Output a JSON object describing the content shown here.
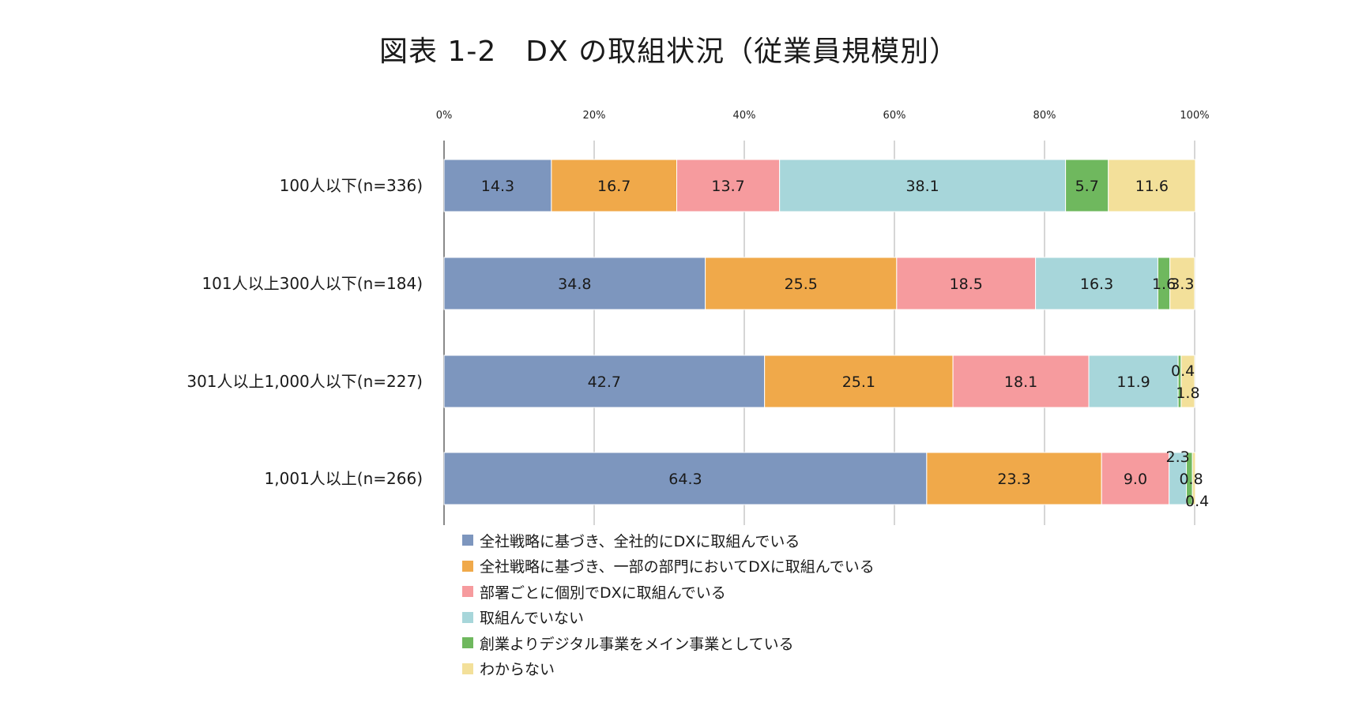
{
  "chart_data": {
    "type": "bar",
    "orientation": "horizontal",
    "stacked": true,
    "title": "図表 1-2　DX の取組状況（従業員規模別）",
    "categories": [
      "100人以下(n=336)",
      "101人以上300人以下(n=184)",
      "301人以上1,000人以下(n=227)",
      "1,001人以上(n=266)"
    ],
    "series": [
      {
        "name": "全社戦略に基づき、全社的にDXに取組んでいる",
        "color": "#7d96be",
        "values": [
          14.3,
          34.8,
          42.7,
          64.3
        ],
        "labels": [
          "14.3",
          "34.8",
          "42.7",
          "64.3"
        ]
      },
      {
        "name": "全社戦略に基づき、一部の部門においてDXに取組んでいる",
        "color": "#f0a94a",
        "values": [
          16.7,
          25.5,
          25.1,
          23.3
        ],
        "labels": [
          "16.7",
          "25.5",
          "25.1",
          "23.3"
        ]
      },
      {
        "name": "部署ごとに個別でDXに取組んでいる",
        "color": "#f69b9e",
        "values": [
          13.7,
          18.5,
          18.1,
          9.0
        ],
        "labels": [
          "13.7",
          "18.5",
          "18.1",
          "9.0"
        ]
      },
      {
        "name": "取組んでいない",
        "color": "#a7d6da",
        "values": [
          38.1,
          16.3,
          11.9,
          2.3
        ],
        "labels": [
          "38.1",
          "16.3",
          "11.9",
          "2.3"
        ]
      },
      {
        "name": "創業よりデジタル事業をメイン事業としている",
        "color": "#6fb85e",
        "values": [
          5.7,
          1.6,
          0.4,
          0.8
        ],
        "labels": [
          "5.7",
          "1.6",
          "0.4",
          "0.8"
        ]
      },
      {
        "name": "わからない",
        "color": "#f3e09a",
        "values": [
          11.6,
          3.3,
          1.8,
          0.4
        ],
        "labels": [
          "11.6",
          "3.3",
          "1.8",
          "0.4"
        ]
      }
    ],
    "xlim": [
      0,
      100
    ],
    "xticks": [
      "0%",
      "20%",
      "40%",
      "60%",
      "80%",
      "100%"
    ],
    "grid": true,
    "legend_position": "bottom"
  }
}
